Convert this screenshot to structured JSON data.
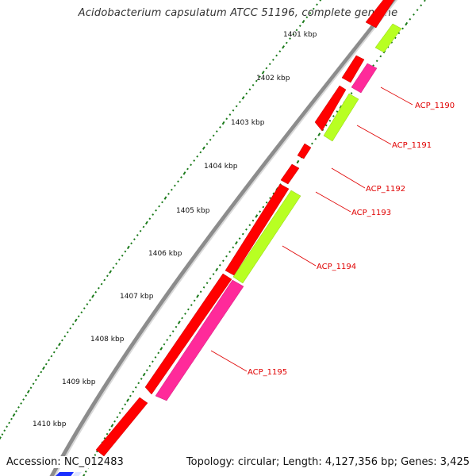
{
  "title": "Acidobacterium capsulatum ATCC 51196, complete genome",
  "footer": {
    "accession": "Accession: NC_012483",
    "summary": "Topology: circular; Length: 4,127,356 bp; Genes: 3,425"
  },
  "ruler": {
    "labels": [
      "1401 kbp",
      "1402 kbp",
      "1403 kbp",
      "1404 kbp",
      "1405 kbp",
      "1406 kbp",
      "1407 kbp",
      "1408 kbp",
      "1409 kbp",
      "1410 kbp"
    ]
  },
  "genes": [
    {
      "label": "ACP_1190"
    },
    {
      "label": "ACP_1191"
    },
    {
      "label": "ACP_1192"
    },
    {
      "label": "ACP_1193"
    },
    {
      "label": "ACP_1194"
    },
    {
      "label": "ACP_1195"
    }
  ],
  "colors": {
    "backbone": "#8c8c8c",
    "cds": "#ff0000",
    "magenta_feature": "#ff2a9a",
    "green_feature": "#b8ff22",
    "gc_ticks": "#1a7a1a",
    "label": "#e00000",
    "contig": "#1a2fff"
  }
}
